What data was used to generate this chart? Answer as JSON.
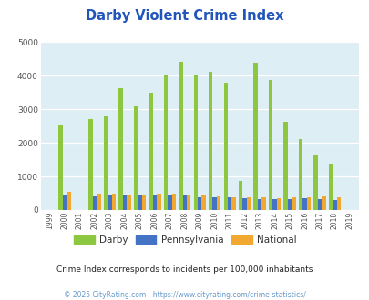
{
  "title": "Darby Violent Crime Index",
  "years": [
    1999,
    2000,
    2001,
    2002,
    2003,
    2004,
    2005,
    2006,
    2007,
    2008,
    2009,
    2010,
    2011,
    2012,
    2013,
    2014,
    2015,
    2016,
    2017,
    2018,
    2019
  ],
  "darby": [
    0,
    2520,
    0,
    2700,
    2780,
    3620,
    3080,
    3500,
    4040,
    4400,
    4020,
    4120,
    3780,
    870,
    4380,
    3870,
    2620,
    2120,
    1620,
    1390,
    0
  ],
  "pennsylvania": [
    0,
    430,
    0,
    410,
    430,
    440,
    430,
    440,
    460,
    450,
    390,
    380,
    370,
    360,
    330,
    330,
    330,
    340,
    320,
    300,
    0
  ],
  "national": [
    0,
    530,
    0,
    490,
    480,
    465,
    470,
    480,
    490,
    460,
    430,
    405,
    390,
    385,
    370,
    360,
    375,
    390,
    395,
    375,
    0
  ],
  "darby_color": "#8dc63f",
  "pa_color": "#4472c4",
  "national_color": "#f0a830",
  "bg_color": "#deeef5",
  "ylim": [
    0,
    5000
  ],
  "yticks": [
    0,
    1000,
    2000,
    3000,
    4000,
    5000
  ],
  "subtitle": "Crime Index corresponds to incidents per 100,000 inhabitants",
  "footer": "© 2025 CityRating.com - https://www.cityrating.com/crime-statistics/",
  "title_color": "#2255bb",
  "subtitle_color": "#222222",
  "footer_color": "#6699cc"
}
